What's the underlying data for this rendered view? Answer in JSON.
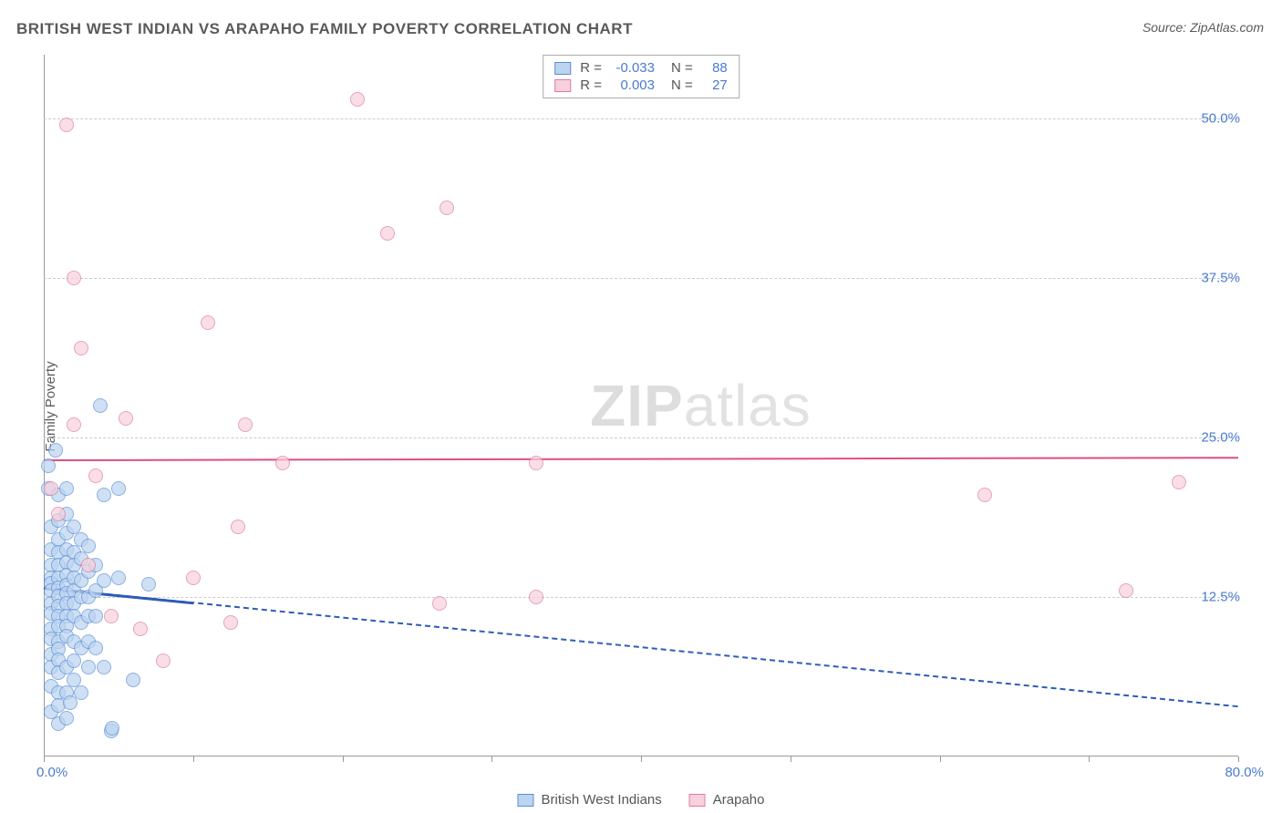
{
  "title": "BRITISH WEST INDIAN VS ARAPAHO FAMILY POVERTY CORRELATION CHART",
  "source_label": "Source: ",
  "source_name": "ZipAtlas.com",
  "ylabel": "Family Poverty",
  "watermark": {
    "part1": "ZIP",
    "part2": "atlas"
  },
  "chart": {
    "type": "scatter",
    "xlim": [
      0,
      80
    ],
    "ylim": [
      0,
      55
    ],
    "x_tick_positions": [
      0,
      10,
      20,
      30,
      40,
      50,
      60,
      70,
      80
    ],
    "y_ticks": [
      {
        "v": 12.5,
        "label": "12.5%"
      },
      {
        "v": 25.0,
        "label": "25.0%"
      },
      {
        "v": 37.5,
        "label": "37.5%"
      },
      {
        "v": 50.0,
        "label": "50.0%"
      }
    ],
    "x_min_label": "0.0%",
    "x_max_label": "80.0%",
    "background_color": "#ffffff",
    "grid_color": "#cccccc",
    "axis_color": "#999999",
    "tick_label_color": "#4a7bd0",
    "marker_radius": 8,
    "marker_stroke_width": 1.5,
    "series": [
      {
        "name": "British West Indians",
        "fill": "#bcd4f0",
        "stroke": "#5b8fd6",
        "fill_opacity": 0.7,
        "R": "-0.033",
        "N": "88",
        "trend": {
          "x1": 0,
          "y1": 13.3,
          "x2": 80,
          "y2": 4.0,
          "color": "#2e5cb8",
          "width": 2,
          "dash": "6,4"
        },
        "trend_solid_end_x": 10,
        "points": [
          [
            0.3,
            22.8
          ],
          [
            0.3,
            21.0
          ],
          [
            0.5,
            18.0
          ],
          [
            0.5,
            16.2
          ],
          [
            0.5,
            15.0
          ],
          [
            0.5,
            14.0
          ],
          [
            0.5,
            13.6
          ],
          [
            0.5,
            13.0
          ],
          [
            0.5,
            12.0
          ],
          [
            0.5,
            11.2
          ],
          [
            0.5,
            10.0
          ],
          [
            0.5,
            9.2
          ],
          [
            0.5,
            8.0
          ],
          [
            0.5,
            7.0
          ],
          [
            0.5,
            5.5
          ],
          [
            0.5,
            3.5
          ],
          [
            0.8,
            24.0
          ],
          [
            1.0,
            20.5
          ],
          [
            1.0,
            18.5
          ],
          [
            1.0,
            17.0
          ],
          [
            1.0,
            16.0
          ],
          [
            1.0,
            15.0
          ],
          [
            1.0,
            14.0
          ],
          [
            1.0,
            13.2
          ],
          [
            1.0,
            12.6
          ],
          [
            1.0,
            11.8
          ],
          [
            1.0,
            11.0
          ],
          [
            1.0,
            10.2
          ],
          [
            1.0,
            9.0
          ],
          [
            1.0,
            8.4
          ],
          [
            1.0,
            7.6
          ],
          [
            1.0,
            6.6
          ],
          [
            1.0,
            5.0
          ],
          [
            1.0,
            4.0
          ],
          [
            1.0,
            2.6
          ],
          [
            1.5,
            21.0
          ],
          [
            1.5,
            19.0
          ],
          [
            1.5,
            17.5
          ],
          [
            1.5,
            16.2
          ],
          [
            1.5,
            15.2
          ],
          [
            1.5,
            14.2
          ],
          [
            1.5,
            13.4
          ],
          [
            1.5,
            12.8
          ],
          [
            1.5,
            12.0
          ],
          [
            1.5,
            11.0
          ],
          [
            1.5,
            10.2
          ],
          [
            1.5,
            9.4
          ],
          [
            1.5,
            7.0
          ],
          [
            1.5,
            5.0
          ],
          [
            1.5,
            3.0
          ],
          [
            2.0,
            18.0
          ],
          [
            2.0,
            16.0
          ],
          [
            2.0,
            15.0
          ],
          [
            2.0,
            14.0
          ],
          [
            2.0,
            13.0
          ],
          [
            2.0,
            12.0
          ],
          [
            2.0,
            11.0
          ],
          [
            2.0,
            9.0
          ],
          [
            2.0,
            7.5
          ],
          [
            2.0,
            6.0
          ],
          [
            2.5,
            17.0
          ],
          [
            2.5,
            15.5
          ],
          [
            2.5,
            13.8
          ],
          [
            2.5,
            12.5
          ],
          [
            2.5,
            10.5
          ],
          [
            2.5,
            8.5
          ],
          [
            2.5,
            5.0
          ],
          [
            3.0,
            16.5
          ],
          [
            3.0,
            14.5
          ],
          [
            3.0,
            12.5
          ],
          [
            3.0,
            11.0
          ],
          [
            3.0,
            9.0
          ],
          [
            3.0,
            7.0
          ],
          [
            3.5,
            15.0
          ],
          [
            3.5,
            13.0
          ],
          [
            3.5,
            11.0
          ],
          [
            3.5,
            8.5
          ],
          [
            4.0,
            20.5
          ],
          [
            4.0,
            13.8
          ],
          [
            4.0,
            7.0
          ],
          [
            4.5,
            2.0
          ],
          [
            5.0,
            21.0
          ],
          [
            5.0,
            14.0
          ],
          [
            6.0,
            6.0
          ],
          [
            7.0,
            13.5
          ],
          [
            3.8,
            27.5
          ],
          [
            4.6,
            2.2
          ],
          [
            1.8,
            4.2
          ]
        ]
      },
      {
        "name": "Arapaho",
        "fill": "#f7d1dc",
        "stroke": "#e07ba0",
        "fill_opacity": 0.7,
        "R": "0.003",
        "N": "27",
        "trend": {
          "x1": 0,
          "y1": 23.3,
          "x2": 80,
          "y2": 23.5,
          "color": "#e04c86",
          "width": 2,
          "dash": "none"
        },
        "points": [
          [
            1.5,
            49.5
          ],
          [
            21.0,
            51.5
          ],
          [
            27.0,
            43.0
          ],
          [
            23.0,
            41.0
          ],
          [
            2.0,
            37.5
          ],
          [
            2.5,
            32.0
          ],
          [
            11.0,
            34.0
          ],
          [
            2.0,
            26.0
          ],
          [
            5.5,
            26.5
          ],
          [
            13.5,
            26.0
          ],
          [
            16.0,
            23.0
          ],
          [
            3.5,
            22.0
          ],
          [
            1.0,
            19.0
          ],
          [
            0.5,
            21.0
          ],
          [
            33.0,
            23.0
          ],
          [
            63.0,
            20.5
          ],
          [
            76.0,
            21.5
          ],
          [
            3.0,
            15.0
          ],
          [
            10.0,
            14.0
          ],
          [
            12.5,
            10.5
          ],
          [
            13.0,
            18.0
          ],
          [
            6.5,
            10.0
          ],
          [
            4.5,
            11.0
          ],
          [
            8.0,
            7.5
          ],
          [
            26.5,
            12.0
          ],
          [
            33.0,
            12.5
          ],
          [
            72.5,
            13.0
          ]
        ]
      }
    ]
  },
  "stats_box": {
    "R_label": "R =",
    "N_label": "N ="
  },
  "legend": [
    {
      "label": "British West Indians",
      "fill": "#bcd4f0",
      "stroke": "#5b8fd6"
    },
    {
      "label": "Arapaho",
      "fill": "#f7d1dc",
      "stroke": "#e07ba0"
    }
  ]
}
